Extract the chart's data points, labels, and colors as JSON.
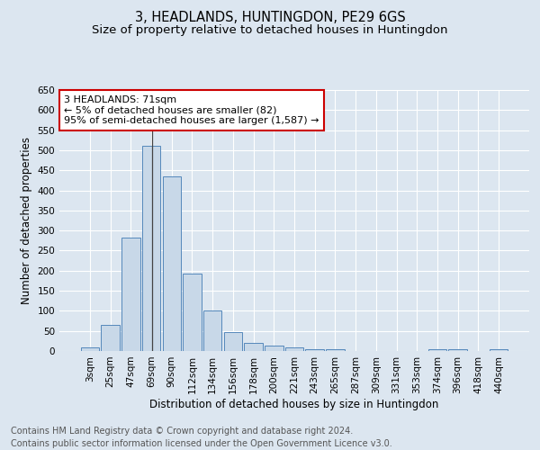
{
  "title": "3, HEADLANDS, HUNTINGDON, PE29 6GS",
  "subtitle": "Size of property relative to detached houses in Huntingdon",
  "xlabel": "Distribution of detached houses by size in Huntingdon",
  "ylabel": "Number of detached properties",
  "categories": [
    "3sqm",
    "25sqm",
    "47sqm",
    "69sqm",
    "90sqm",
    "112sqm",
    "134sqm",
    "156sqm",
    "178sqm",
    "200sqm",
    "221sqm",
    "243sqm",
    "265sqm",
    "287sqm",
    "309sqm",
    "331sqm",
    "353sqm",
    "374sqm",
    "396sqm",
    "418sqm",
    "440sqm"
  ],
  "values": [
    10,
    65,
    283,
    512,
    435,
    192,
    100,
    47,
    20,
    13,
    8,
    4,
    5,
    0,
    0,
    0,
    0,
    5,
    5,
    0,
    5
  ],
  "bar_color": "#c8d8e8",
  "bar_edge_color": "#5588bb",
  "annotation_text": "3 HEADLANDS: 71sqm\n← 5% of detached houses are smaller (82)\n95% of semi-detached houses are larger (1,587) →",
  "annotation_box_color": "#ffffff",
  "annotation_box_edge_color": "#cc0000",
  "footer_line1": "Contains HM Land Registry data © Crown copyright and database right 2024.",
  "footer_line2": "Contains public sector information licensed under the Open Government Licence v3.0.",
  "ylim": [
    0,
    650
  ],
  "yticks": [
    0,
    50,
    100,
    150,
    200,
    250,
    300,
    350,
    400,
    450,
    500,
    550,
    600,
    650
  ],
  "background_color": "#dce6f0",
  "grid_color": "#ffffff",
  "title_fontsize": 10.5,
  "subtitle_fontsize": 9.5,
  "axis_label_fontsize": 8.5,
  "tick_fontsize": 7.5,
  "annotation_fontsize": 8,
  "footer_fontsize": 7
}
